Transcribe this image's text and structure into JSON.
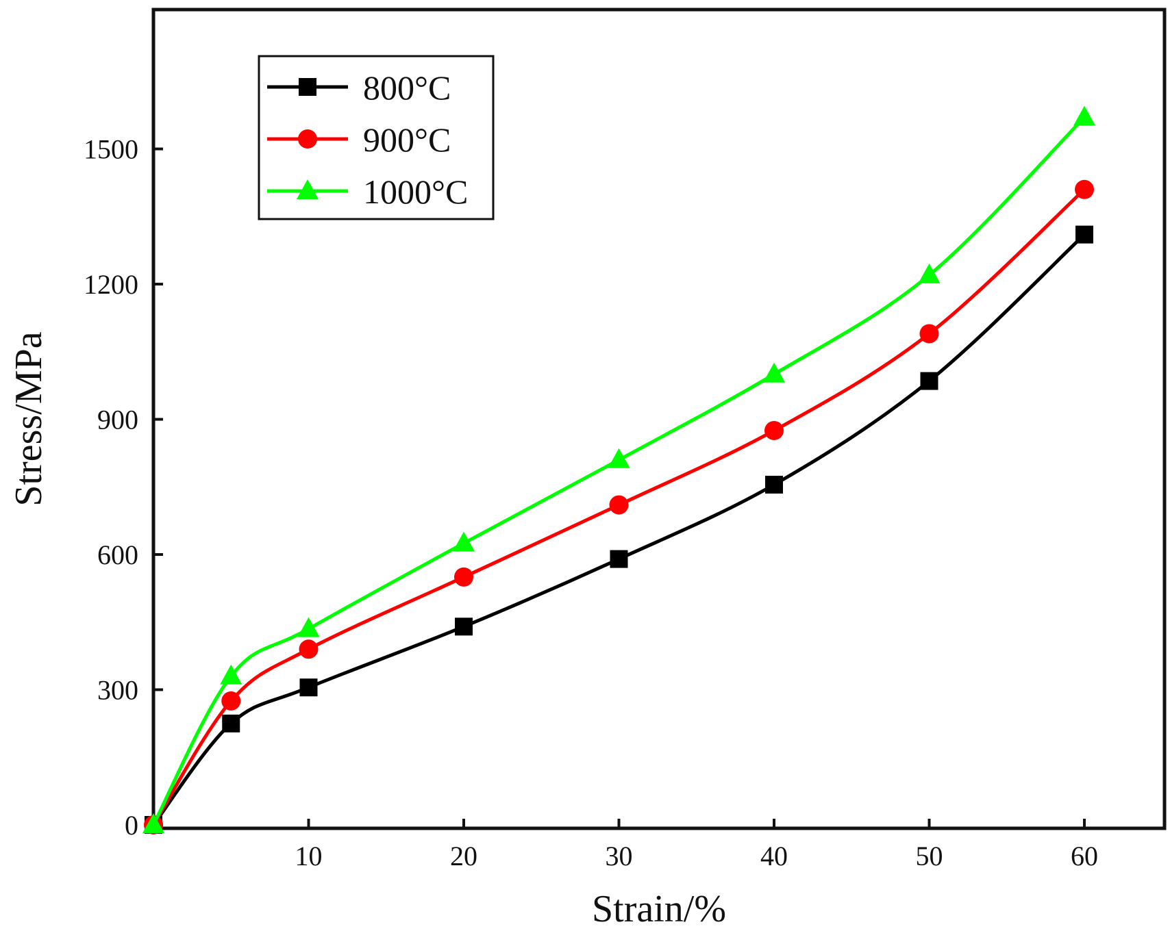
{
  "chart_data": {
    "type": "line",
    "xlabel": "Strain/%",
    "ylabel": "Stress/MPa",
    "xlim": [
      0,
      65
    ],
    "ylim": [
      0,
      1800
    ],
    "xticks": [
      10,
      20,
      30,
      40,
      50,
      60
    ],
    "yticks": [
      0,
      300,
      600,
      900,
      1200,
      1500
    ],
    "grid": false,
    "legend_position": "top-left",
    "series": [
      {
        "name": "800°C",
        "color": "#000000",
        "marker": "square",
        "x": [
          0,
          5,
          10,
          20,
          30,
          40,
          50,
          60
        ],
        "y": [
          0,
          225,
          305,
          440,
          590,
          755,
          985,
          1310
        ]
      },
      {
        "name": "900°C",
        "color": "#ff0000",
        "marker": "circle",
        "x": [
          0,
          5,
          10,
          20,
          30,
          40,
          50,
          60
        ],
        "y": [
          0,
          275,
          390,
          550,
          710,
          875,
          1090,
          1410
        ]
      },
      {
        "name": "1000°C",
        "color": "#00ff00",
        "marker": "triangle",
        "x": [
          0,
          5,
          10,
          20,
          30,
          40,
          50,
          60
        ],
        "y": [
          0,
          330,
          435,
          625,
          810,
          1000,
          1220,
          1570
        ]
      }
    ]
  }
}
